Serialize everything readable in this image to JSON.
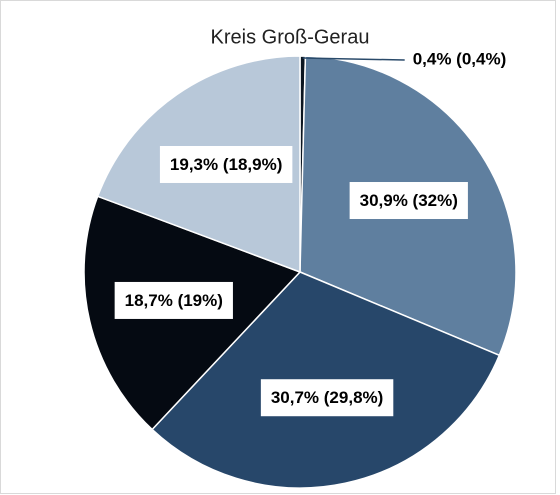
{
  "chart_data": {
    "type": "pie",
    "title": "Kreis Groß-Gerau",
    "values": [
      0.4,
      30.9,
      30.7,
      18.7,
      19.3
    ],
    "value_labels": [
      "0,4% (0,4%)",
      "30,9% (32%)",
      "30,7% (29,8%)",
      "18,7% (19%)",
      "19,3% (18,9%)"
    ],
    "colors": [
      "#0b1520",
      "#5f7f9f",
      "#27476a",
      "#050a12",
      "#b8c8d9"
    ]
  }
}
